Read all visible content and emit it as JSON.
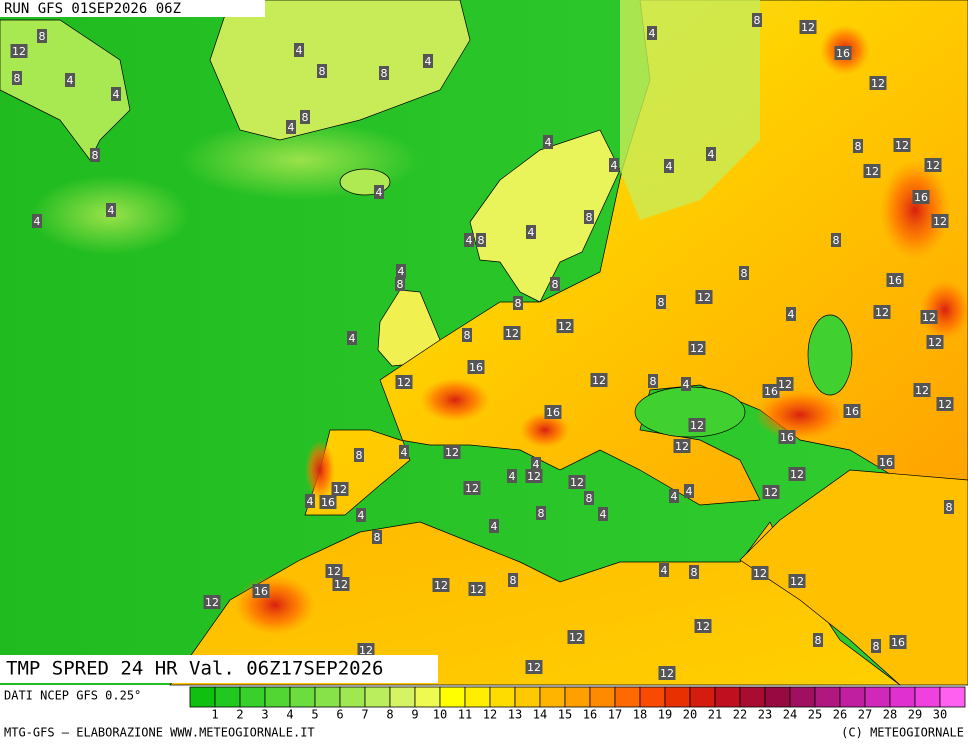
{
  "header": {
    "run": "RUN GFS 01SEP2026 06Z"
  },
  "title": "TMP SPRED 24 HR Val. 06Z17SEP2026",
  "source": "DATI NCEP GFS 0.25°",
  "footer": {
    "left": "MTG-GFS — ELABORAZIONE WWW.METEOGIORNALE.IT",
    "right": "(C) METEOGIORNALE"
  },
  "colorbar": {
    "labels": [
      1,
      2,
      3,
      4,
      5,
      6,
      7,
      8,
      9,
      10,
      11,
      12,
      13,
      14,
      15,
      16,
      17,
      18,
      19,
      20,
      21,
      22,
      23,
      24,
      25,
      26,
      27,
      28,
      29,
      30
    ],
    "colors": [
      "#10c010",
      "#20c820",
      "#38d02a",
      "#52d634",
      "#6cdc3e",
      "#86e248",
      "#a0e852",
      "#baee5c",
      "#d4f466",
      "#eefa50",
      "#ffff00",
      "#ffee00",
      "#ffdc00",
      "#ffc800",
      "#ffb400",
      "#ffa000",
      "#ff8a00",
      "#ff6a00",
      "#f84a00",
      "#e83000",
      "#d41c10",
      "#c01020",
      "#a80c30",
      "#960a40",
      "#a01060",
      "#b01880",
      "#c020a0",
      "#d028b8",
      "#e030d0",
      "#f040e0",
      "#ff60f0"
    ]
  },
  "map_labels": [
    8,
    12,
    4,
    8,
    4,
    8,
    4,
    4,
    4,
    8,
    8,
    4,
    4,
    8,
    4,
    4,
    8,
    4,
    4,
    4,
    4,
    4,
    8,
    4,
    8,
    4,
    8,
    8,
    8,
    12,
    12,
    8,
    12,
    4,
    8,
    8,
    16,
    12,
    16,
    12,
    12,
    12,
    8,
    12,
    16,
    12,
    12,
    8,
    4,
    16,
    12,
    12,
    12,
    4,
    8,
    16,
    12,
    16,
    12,
    16,
    16,
    12,
    12,
    12,
    12,
    12,
    4,
    8,
    12,
    12,
    16,
    4,
    4,
    8,
    12,
    8,
    4,
    4,
    12,
    4,
    12,
    8,
    4,
    4,
    4,
    12,
    12,
    16,
    8,
    12,
    16,
    12,
    12,
    12,
    12,
    8,
    4,
    8,
    12,
    12,
    12,
    12,
    8,
    8,
    16,
    12,
    12,
    12
  ]
}
